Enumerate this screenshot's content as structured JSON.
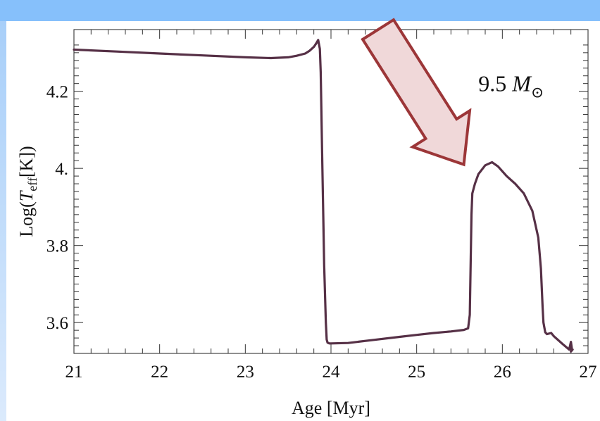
{
  "chart_data": {
    "type": "line",
    "title": "",
    "xlabel": "Age [Myr]",
    "ylabel_parts": {
      "prefix": "Log(",
      "italic": "T",
      "subscript": "eff",
      "suffix": "[K])"
    },
    "xlim": [
      21,
      27
    ],
    "ylim": [
      3.52,
      4.36
    ],
    "x_ticks": [
      21,
      22,
      23,
      24,
      25,
      26,
      27
    ],
    "x_tick_labels": [
      "21",
      "22",
      "23",
      "24",
      "25",
      "26",
      "27"
    ],
    "y_ticks": [
      3.6,
      3.8,
      4.0,
      4.2
    ],
    "y_tick_labels": [
      "3.6",
      "3.8",
      "4.",
      "4.2"
    ],
    "grid": false,
    "series": [
      {
        "color": "#563046",
        "x": [
          21.0,
          21.5,
          22.0,
          22.5,
          23.0,
          23.3,
          23.5,
          23.6,
          23.7,
          23.75,
          23.8,
          23.83,
          23.85,
          23.87,
          23.88,
          23.9,
          23.92,
          23.94,
          23.95,
          23.96,
          23.98,
          24.0,
          24.2,
          24.5,
          24.8,
          25.0,
          25.2,
          25.4,
          25.55,
          25.6,
          25.62,
          25.63,
          25.64,
          25.65,
          25.68,
          25.72,
          25.8,
          25.88,
          25.95,
          26.05,
          26.15,
          26.25,
          26.35,
          26.42,
          26.45,
          26.47,
          26.48,
          26.5,
          26.52,
          26.57,
          26.6,
          26.7,
          26.78,
          26.8,
          26.81,
          26.8,
          26.82
        ],
        "y": [
          4.308,
          4.303,
          4.298,
          4.293,
          4.288,
          4.286,
          4.288,
          4.292,
          4.298,
          4.305,
          4.315,
          4.325,
          4.333,
          4.31,
          4.25,
          4.0,
          3.75,
          3.6,
          3.556,
          3.548,
          3.546,
          3.546,
          3.547,
          3.555,
          3.563,
          3.568,
          3.573,
          3.577,
          3.581,
          3.585,
          3.62,
          3.75,
          3.88,
          3.935,
          3.96,
          3.985,
          4.008,
          4.016,
          4.005,
          3.98,
          3.96,
          3.935,
          3.89,
          3.82,
          3.74,
          3.64,
          3.6,
          3.575,
          3.57,
          3.573,
          3.565,
          3.545,
          3.53,
          3.55,
          3.535,
          3.525,
          3.53
        ]
      }
    ],
    "annotations": [
      {
        "text_main": "9.5 ",
        "text_italic": "M",
        "text_sub": "⊙",
        "x": 25.72,
        "y": 4.2
      }
    ],
    "arrow": {
      "fill": "#f0d8d9",
      "stroke": "#9c3638",
      "from": [
        24.55,
        4.36
      ],
      "to": [
        25.55,
        4.01
      ]
    },
    "line_color": "#563046"
  }
}
